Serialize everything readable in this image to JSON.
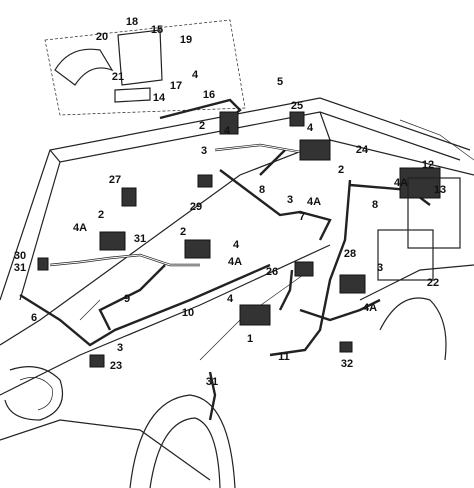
{
  "callouts": [
    "18",
    "15",
    "20",
    "19",
    "21",
    "4",
    "17",
    "14",
    "16",
    "5",
    "25",
    "2",
    "4",
    "3",
    "4",
    "24",
    "12",
    "2",
    "4A",
    "13",
    "27",
    "29",
    "8",
    "3",
    "4A",
    "7",
    "8",
    "2",
    "4A",
    "31",
    "2",
    "4",
    "4A",
    "30",
    "31",
    "28",
    "3",
    "22",
    "26",
    "4",
    "9",
    "10",
    "6",
    "3",
    "1",
    "4A",
    "11",
    "32",
    "23",
    "31"
  ]
}
